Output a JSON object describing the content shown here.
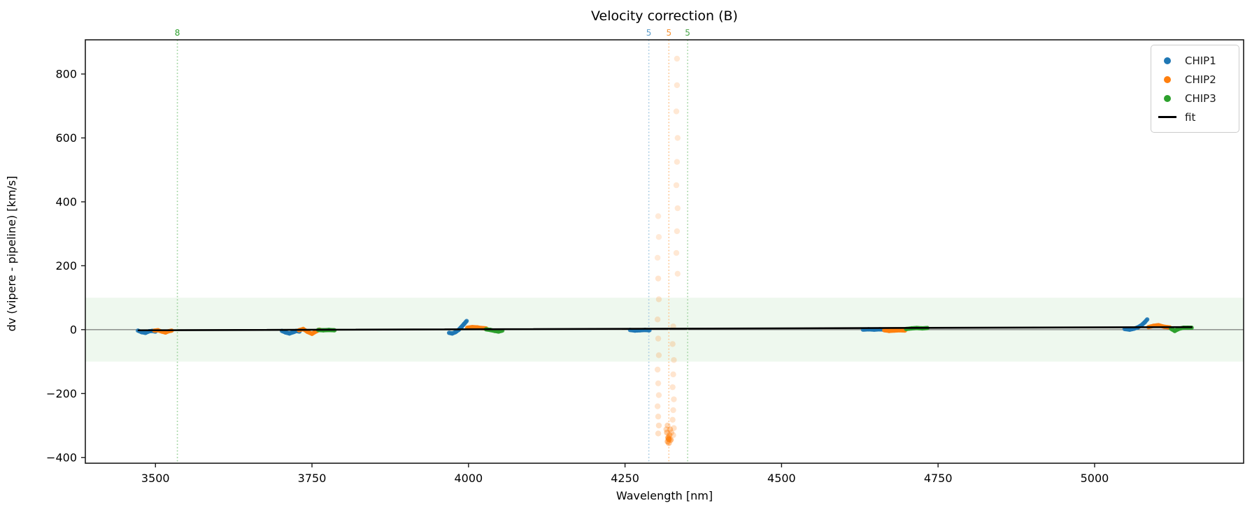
{
  "chart_data": {
    "type": "scatter",
    "title": "Velocity correction (B)",
    "xlabel": "Wavelength [nm]",
    "ylabel": "dv (vipere - pipeline) [km/s]",
    "xlim": [
      3388,
      5238
    ],
    "ylim": [
      -418,
      907
    ],
    "xticks": [
      3500,
      3750,
      4000,
      4250,
      4500,
      4750,
      5000
    ],
    "yticks": [
      -400,
      -200,
      0,
      200,
      400,
      600,
      800
    ],
    "grid": false,
    "band": {
      "ymin": -100,
      "ymax": 100,
      "color": "#2ca02c",
      "opacity": 0.08
    },
    "zero_line": {
      "y": 0,
      "color": "#5a5a5a",
      "width": 1
    },
    "fit_line": {
      "label": "fit",
      "color": "#000000",
      "width": 2.6,
      "x": [
        3473,
        5155
      ],
      "y": [
        -2,
        8
      ]
    },
    "vlines": [
      {
        "x": 3535,
        "label": "8",
        "color": "#9fd49f",
        "label_color": "#2ca02c"
      },
      {
        "x": 4288,
        "label": "5",
        "color": "#a9cce4",
        "label_color": "#5a9bc9"
      },
      {
        "x": 4320,
        "label": "5",
        "color": "#ffc793",
        "label_color": "#f78f2e"
      },
      {
        "x": 4350,
        "label": "5",
        "color": "#a6d7a6",
        "label_color": "#4aa54a"
      }
    ],
    "series": [
      {
        "name": "CHIP1",
        "color": "#1f77b4",
        "clusters": [
          [
            [
              3472,
              -3
            ],
            [
              3478,
              -8
            ],
            [
              3484,
              -10
            ],
            [
              3490,
              -5
            ],
            [
              3495,
              -4
            ],
            [
              3500,
              -6
            ]
          ],
          [
            [
              3702,
              -4
            ],
            [
              3708,
              -9
            ],
            [
              3714,
              -12
            ],
            [
              3720,
              -8
            ],
            [
              3725,
              -4
            ],
            [
              3730,
              -6
            ]
          ],
          [
            [
              3969,
              -10
            ],
            [
              3974,
              -12
            ],
            [
              3979,
              -8
            ],
            [
              3984,
              -1
            ],
            [
              3989,
              9
            ],
            [
              3993,
              18
            ],
            [
              3997,
              27
            ]
          ],
          [
            [
              4258,
              -1
            ],
            [
              4266,
              -3
            ],
            [
              4274,
              -2
            ],
            [
              4282,
              -1
            ],
            [
              4289,
              -2
            ]
          ],
          [
            [
              4630,
              0
            ],
            [
              4639,
              1
            ],
            [
              4648,
              0
            ],
            [
              4657,
              1
            ],
            [
              4665,
              0
            ]
          ],
          [
            [
              5048,
              2
            ],
            [
              5056,
              0
            ],
            [
              5063,
              3
            ],
            [
              5069,
              7
            ],
            [
              5075,
              14
            ],
            [
              5080,
              23
            ],
            [
              5084,
              32
            ]
          ]
        ]
      },
      {
        "name": "CHIP2",
        "color": "#ff7f0e",
        "clusters": [
          [
            [
              3498,
              -3
            ],
            [
              3504,
              -2
            ],
            [
              3510,
              -6
            ],
            [
              3516,
              -9
            ],
            [
              3521,
              -5
            ],
            [
              3526,
              -3
            ]
          ],
          [
            [
              3729,
              -2
            ],
            [
              3736,
              2
            ],
            [
              3743,
              -7
            ],
            [
              3750,
              -13
            ],
            [
              3756,
              -6
            ],
            [
              3762,
              0
            ]
          ],
          [
            [
              3998,
              6
            ],
            [
              4006,
              8
            ],
            [
              4014,
              7
            ],
            [
              4021,
              5
            ],
            [
              4028,
              4
            ]
          ],
          [
            [
              4664,
              -2
            ],
            [
              4672,
              -4
            ],
            [
              4680,
              -3
            ],
            [
              4689,
              -2
            ],
            [
              4697,
              -3
            ]
          ],
          [
            [
              5086,
              8
            ],
            [
              5094,
              12
            ],
            [
              5102,
              14
            ],
            [
              5111,
              9
            ],
            [
              5120,
              7
            ]
          ]
        ]
      },
      {
        "name": "CHIP3",
        "color": "#2ca02c",
        "clusters": [
          [
            [
              3760,
              -1
            ],
            [
              3768,
              -2
            ],
            [
              3777,
              -1
            ],
            [
              3786,
              -2
            ]
          ],
          [
            [
              4028,
              1
            ],
            [
              4035,
              -1
            ],
            [
              4042,
              -4
            ],
            [
              4048,
              -6
            ],
            [
              4054,
              -3
            ]
          ],
          [
            [
              4699,
              2
            ],
            [
              4708,
              4
            ],
            [
              4716,
              5
            ],
            [
              4725,
              4
            ],
            [
              4733,
              5
            ]
          ],
          [
            [
              5122,
              3
            ],
            [
              5128,
              -4
            ],
            [
              5135,
              3
            ],
            [
              5142,
              6
            ],
            [
              5149,
              6
            ],
            [
              5155,
              6
            ]
          ]
        ]
      }
    ],
    "outlier_spray": {
      "series": "CHIP2",
      "color": "#ff7f0e",
      "points": [
        [
          4333,
          848,
          0.18
        ],
        [
          4333,
          765,
          0.18
        ],
        [
          4332,
          683,
          0.18
        ],
        [
          4334,
          600,
          0.18
        ],
        [
          4333,
          525,
          0.18
        ],
        [
          4332,
          452,
          0.18
        ],
        [
          4334,
          380,
          0.18
        ],
        [
          4333,
          308,
          0.18
        ],
        [
          4332,
          240,
          0.18
        ],
        [
          4334,
          175,
          0.18
        ],
        [
          4303,
          355,
          0.16
        ],
        [
          4304,
          290,
          0.16
        ],
        [
          4302,
          225,
          0.16
        ],
        [
          4303,
          160,
          0.2
        ],
        [
          4304,
          95,
          0.2
        ],
        [
          4302,
          32,
          0.2
        ],
        [
          4303,
          -28,
          0.2
        ],
        [
          4304,
          -80,
          0.2
        ],
        [
          4302,
          -125,
          0.2
        ],
        [
          4303,
          -168,
          0.2
        ],
        [
          4304,
          -205,
          0.2
        ],
        [
          4302,
          -240,
          0.2
        ],
        [
          4303,
          -272,
          0.22
        ],
        [
          4304,
          -300,
          0.24
        ],
        [
          4303,
          -325,
          0.24
        ],
        [
          4327,
          10,
          0.2
        ],
        [
          4326,
          -45,
          0.2
        ],
        [
          4328,
          -95,
          0.2
        ],
        [
          4327,
          -140,
          0.2
        ],
        [
          4326,
          -180,
          0.2
        ],
        [
          4328,
          -218,
          0.2
        ],
        [
          4327,
          -252,
          0.2
        ],
        [
          4326,
          -282,
          0.22
        ],
        [
          4328,
          -308,
          0.24
        ],
        [
          4327,
          -330,
          0.24
        ],
        [
          4318,
          -300,
          0.3
        ],
        [
          4322,
          -312,
          0.38
        ],
        [
          4317,
          -322,
          0.42
        ],
        [
          4321,
          -330,
          0.5
        ],
        [
          4319,
          -338,
          0.65
        ],
        [
          4323,
          -345,
          0.55
        ],
        [
          4318,
          -350,
          0.5
        ],
        [
          4320,
          -355,
          0.45
        ],
        [
          4316,
          -312,
          0.3
        ],
        [
          4324,
          -322,
          0.3
        ],
        [
          4320,
          -343,
          0.8
        ]
      ]
    },
    "legend": {
      "position": "upper right",
      "items": [
        {
          "label": "CHIP1",
          "color": "#1f77b4",
          "marker": "dot"
        },
        {
          "label": "CHIP2",
          "color": "#ff7f0e",
          "marker": "dot"
        },
        {
          "label": "CHIP3",
          "color": "#2ca02c",
          "marker": "dot"
        },
        {
          "label": "fit",
          "color": "#000000",
          "marker": "line"
        }
      ]
    }
  }
}
